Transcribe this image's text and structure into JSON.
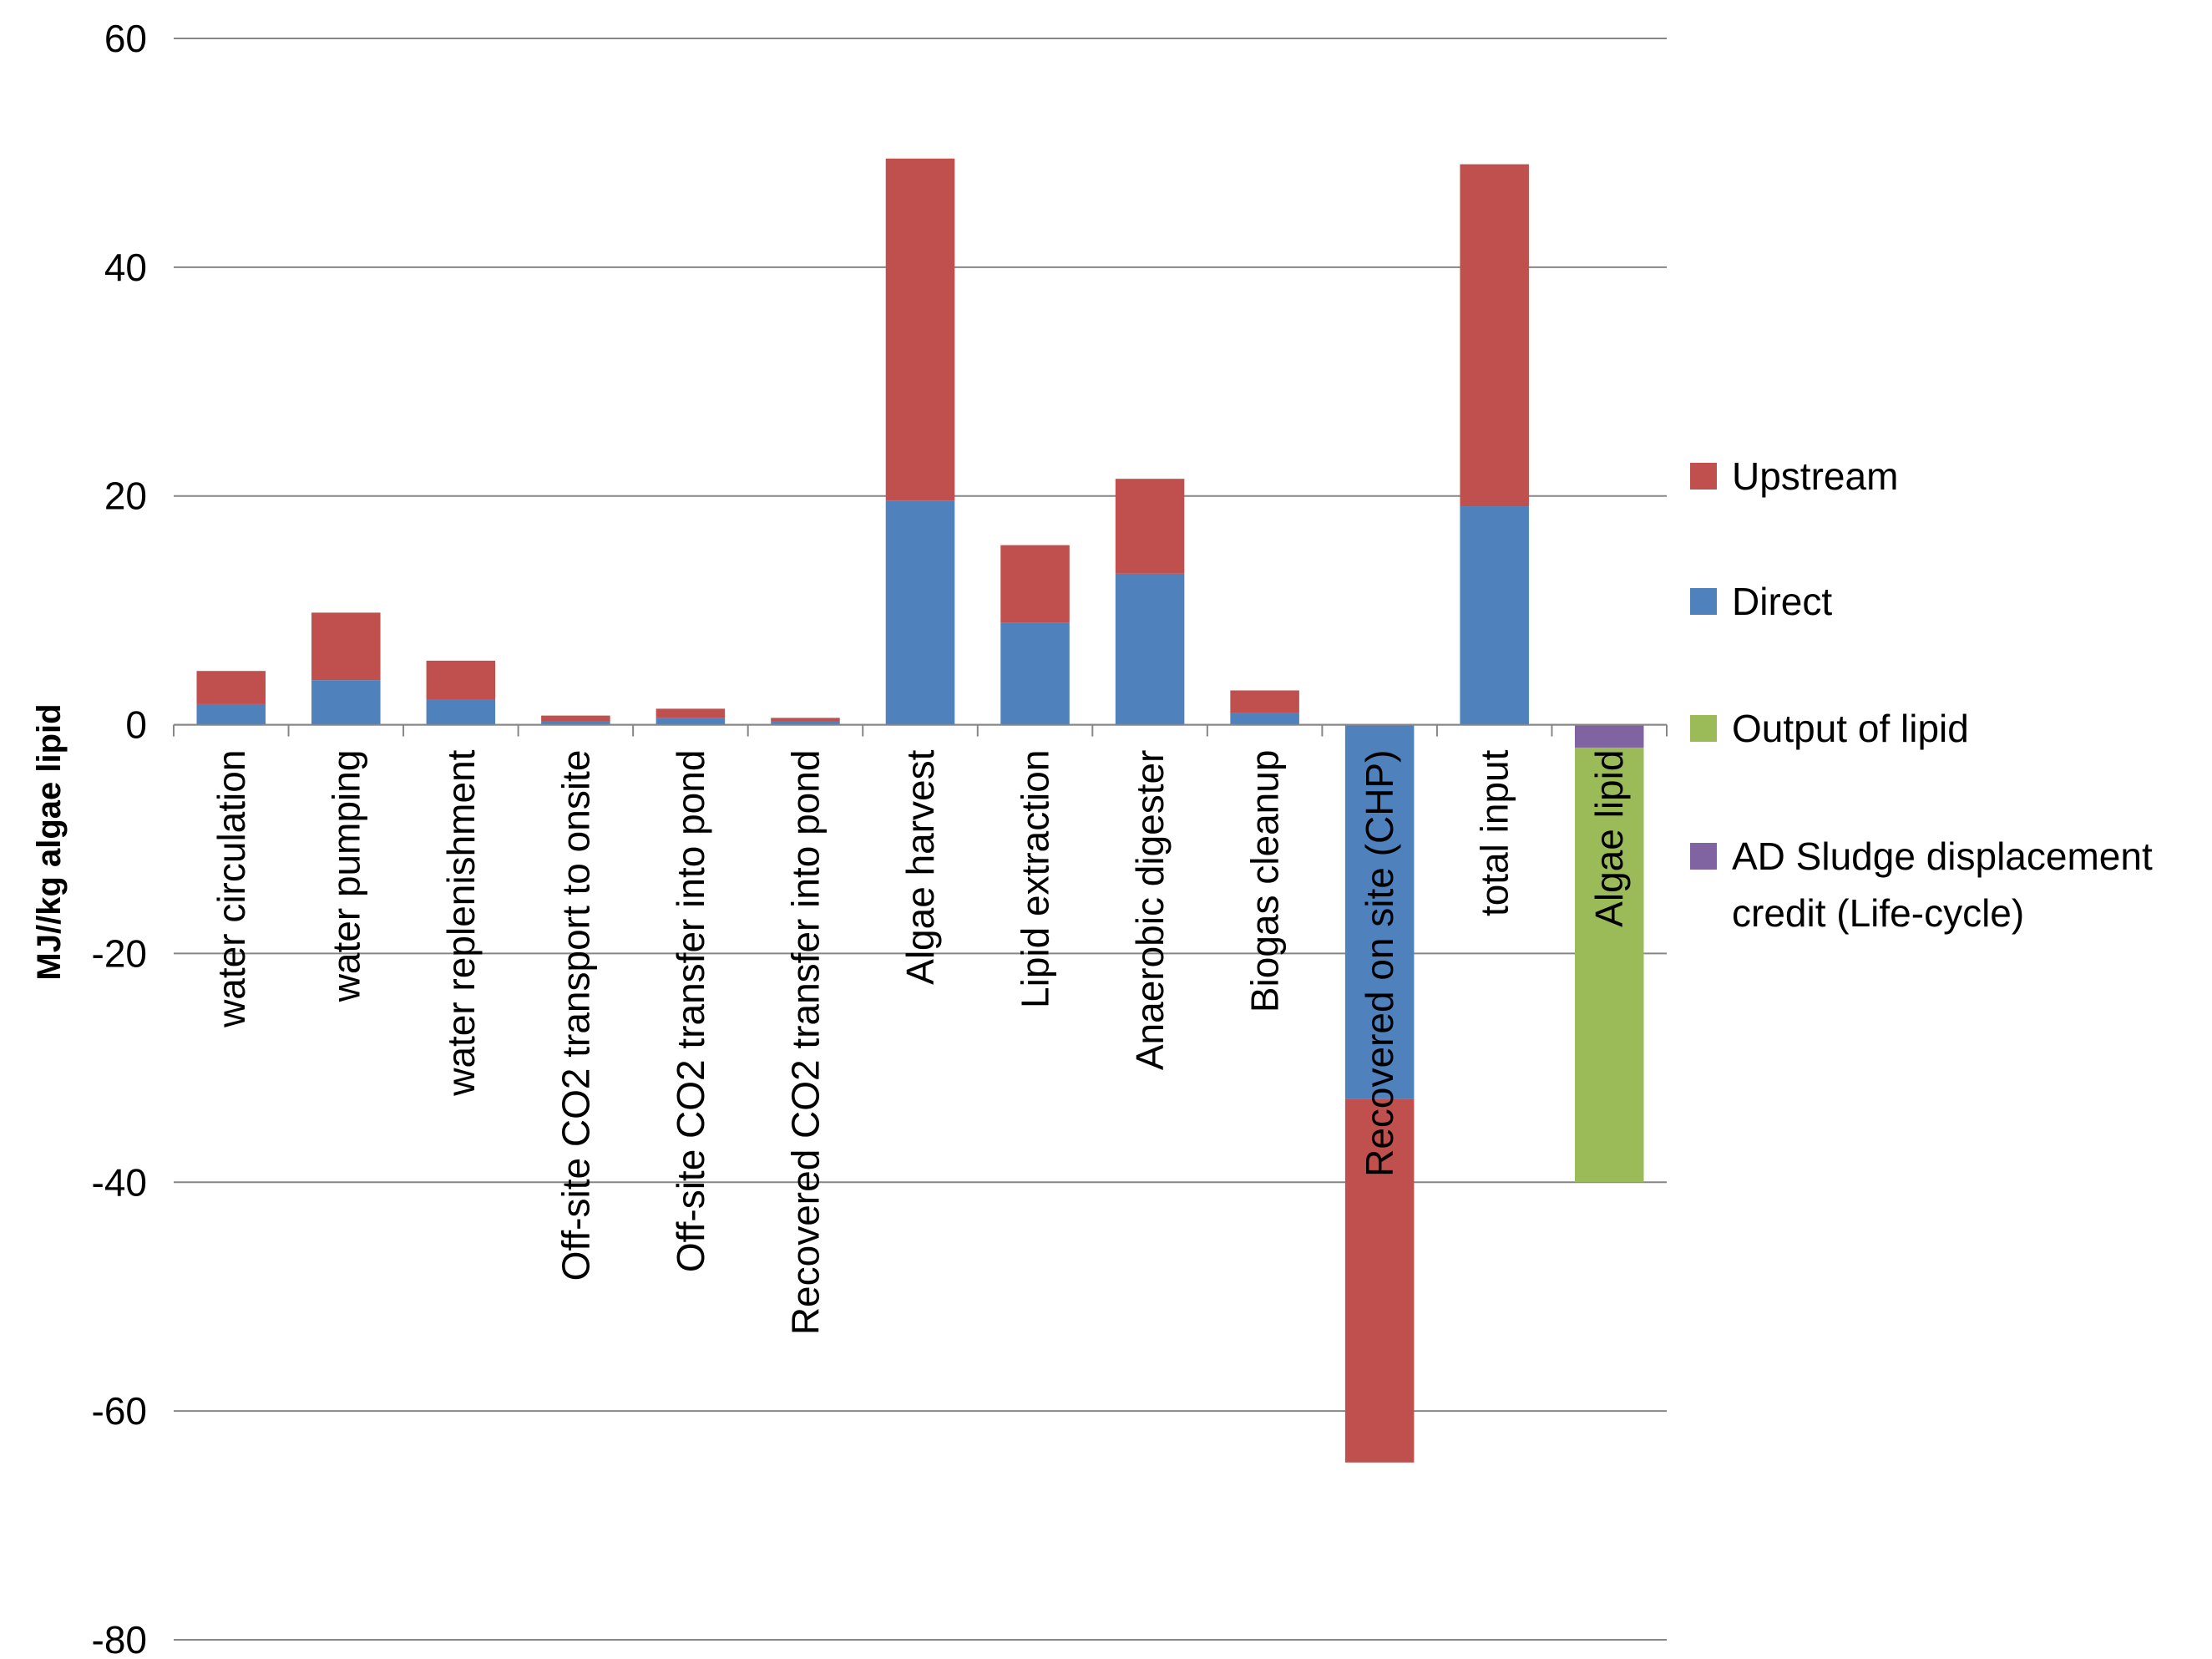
{
  "chart_data": {
    "type": "bar",
    "stacked": true,
    "title": "",
    "xlabel": "",
    "ylabel": "MJ//kg algae lipid",
    "ylim": [
      -80,
      60
    ],
    "yticks": [
      60,
      40,
      20,
      0,
      -20,
      -40,
      -60,
      -80
    ],
    "grid": true,
    "legend_position": "right",
    "categories": [
      "water circulation",
      "water pumping",
      "water replenishment",
      "Off-site CO2 transport to onsite",
      "Off-site CO2 transfer into pond",
      "Recovered CO2 transfer into pond",
      "Algae harvest",
      "Lipid extraction",
      "Anaerobic digester",
      "Biogas cleanup",
      "Recovered on site (CHP)",
      "total input",
      "Algae lipid"
    ],
    "series": [
      {
        "name": "Upstream",
        "color": "#c0504d",
        "values": [
          2.9,
          5.9,
          3.4,
          0.5,
          0.8,
          0.3,
          29.9,
          6.8,
          8.3,
          2.0,
          -31.8,
          29.9,
          0
        ]
      },
      {
        "name": "Direct",
        "color": "#4f81bd",
        "values": [
          1.8,
          3.9,
          2.2,
          0.3,
          0.6,
          0.3,
          19.6,
          8.9,
          13.2,
          1.0,
          -32.7,
          19.1,
          0
        ]
      },
      {
        "name": "Output of lipid",
        "color": "#9bbb59",
        "values": [
          0,
          0,
          0,
          0,
          0,
          0,
          0,
          0,
          0,
          0,
          0,
          0,
          -38.0
        ]
      },
      {
        "name": "AD Sludge displacement credit (Life-cycle)",
        "label_lines": [
          "AD Sludge displacement",
          "credit (Life-cycle)"
        ],
        "color": "#8064a2",
        "values": [
          0,
          0,
          0,
          0,
          0,
          0,
          0,
          0,
          0,
          0,
          0,
          0,
          -2.0
        ]
      }
    ],
    "stack_order": [
      "Direct",
      "Upstream",
      "AD Sludge displacement credit (Life-cycle)",
      "Output of lipid"
    ],
    "legend_order": [
      "Upstream",
      "Direct",
      "Output of lipid",
      "AD Sludge displacement credit (Life-cycle)"
    ]
  }
}
